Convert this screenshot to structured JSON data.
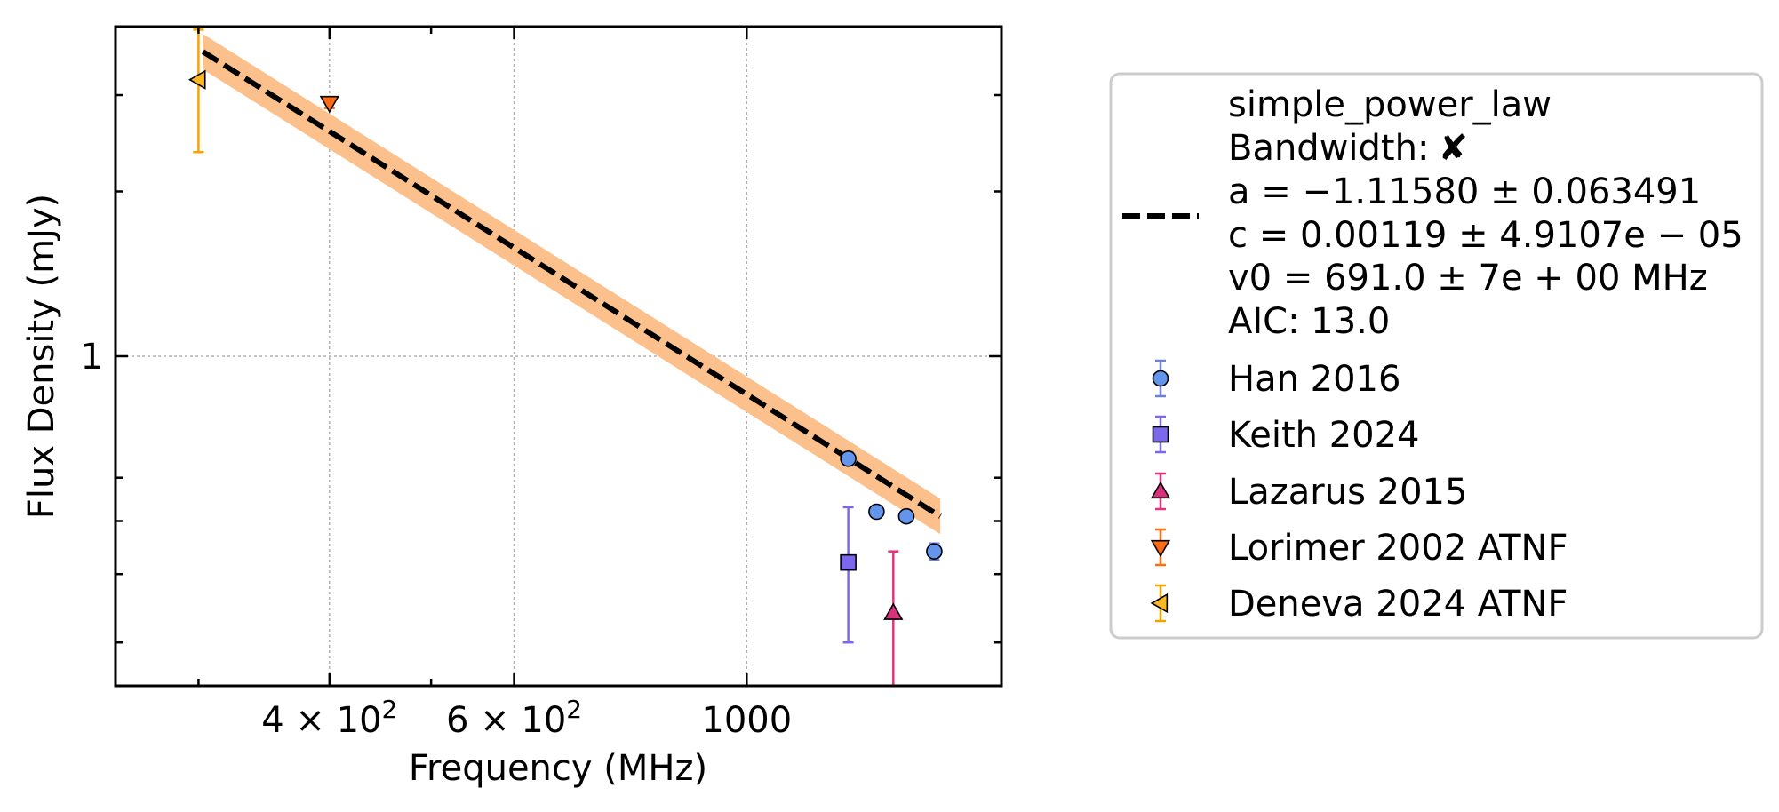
{
  "chart_data": {
    "type": "scatter",
    "xlabel": "Frequency (MHz)",
    "ylabel": "Flux Density (mJy)",
    "x_scale": "log",
    "y_scale": "log",
    "xlim": [
      250,
      1750
    ],
    "ylim": [
      0.25,
      4.0
    ],
    "grid": true,
    "x_ticks": [
      {
        "value": 400,
        "base": "4",
        "exp": "2",
        "mantissa_sep": "×",
        "pow_base": "10"
      },
      {
        "value": 600,
        "base": "6",
        "exp": "2",
        "mantissa_sep": "×",
        "pow_base": "10"
      },
      {
        "value": 1000,
        "label": "1000"
      }
    ],
    "y_ticks": [
      {
        "value": 1,
        "label": "1"
      }
    ],
    "fit": {
      "model_label": "simple_power_law",
      "bandwidth_label": "Bandwidth:",
      "bandwidth_mark": "✘",
      "param_lines": [
        "a = −1.11580 ± 0.063491",
        "c = 0.00119 ± 4.9107e − 05",
        "v0 = 691.0 ± 7e + 00 MHz",
        "AIC: 13.0"
      ],
      "line_color": "#000000",
      "band_color": "#fbc08b",
      "x_range": [
        303,
        1530
      ],
      "y_start": 3.6,
      "y_end": 0.51
    },
    "series": [
      {
        "name": "Han 2016",
        "marker": "circle",
        "color": "#6495ed",
        "ecolor": "#6a7fe8",
        "points": [
          {
            "x": 1250,
            "y": 0.65,
            "err": [
              0.018,
              0.018
            ]
          },
          {
            "x": 1330,
            "y": 0.52,
            "err": [
              0.008,
              0.008
            ]
          },
          {
            "x": 1420,
            "y": 0.51,
            "err": [
              0.008,
              0.008
            ]
          },
          {
            "x": 1510,
            "y": 0.44,
            "err": [
              0.015,
              0.015
            ]
          }
        ]
      },
      {
        "name": "Keith 2024",
        "marker": "square",
        "color": "#7b68ee",
        "ecolor": "#7b68ee",
        "points": [
          {
            "x": 1250,
            "y": 0.42,
            "err": [
              0.12,
              0.11
            ]
          }
        ]
      },
      {
        "name": "Lazarus 2015",
        "marker": "triangle-up",
        "color": "#d6337c",
        "ecolor": "#e0357a",
        "points": [
          {
            "x": 1380,
            "y": 0.34,
            "err": [
              0.09,
              0.1
            ]
          }
        ]
      },
      {
        "name": "Lorimer 2002 ATNF",
        "marker": "triangle-down",
        "color": "#ff6a13",
        "ecolor": "#ff6a13",
        "points": [
          {
            "x": 400,
            "y": 2.9,
            "err": [
              0.06,
              0.06
            ]
          }
        ]
      },
      {
        "name": "Deneva 2024 ATNF",
        "marker": "triangle-left",
        "color": "#fbb726",
        "ecolor": "#f5a300",
        "points": [
          {
            "x": 300,
            "y": 3.2,
            "err": [
              0.84,
              0.75
            ]
          }
        ]
      }
    ]
  }
}
